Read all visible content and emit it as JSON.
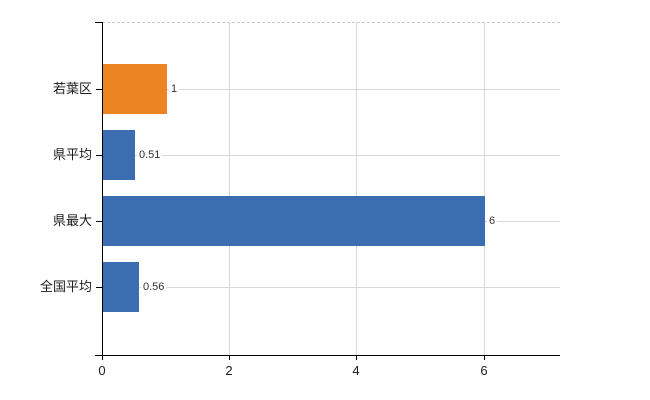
{
  "chart_data": {
    "type": "bar",
    "orientation": "horizontal",
    "title": "",
    "xlabel": "",
    "ylabel": "",
    "categories": [
      "若葉区",
      "県平均",
      "県最大",
      "全国平均"
    ],
    "values": [
      1,
      0.51,
      6,
      0.56
    ],
    "value_labels": [
      "1",
      "0.51",
      "6",
      "0.56"
    ],
    "bar_colors": [
      "#ec8423",
      "#3b6db1",
      "#3b6db1",
      "#3b6db1"
    ],
    "xlim": [
      0,
      7.2
    ],
    "xticks": [
      0,
      2,
      4,
      6
    ],
    "xtick_labels": [
      "0",
      "2",
      "4",
      "6"
    ],
    "grid": true,
    "legend": false,
    "colors": {
      "bar_blue": "#3b6db1",
      "bar_orange": "#ec8423",
      "gridline": "#d9d9d9",
      "axis": "#000000",
      "background": "#ffffff",
      "text": "#1a1a1a"
    }
  }
}
